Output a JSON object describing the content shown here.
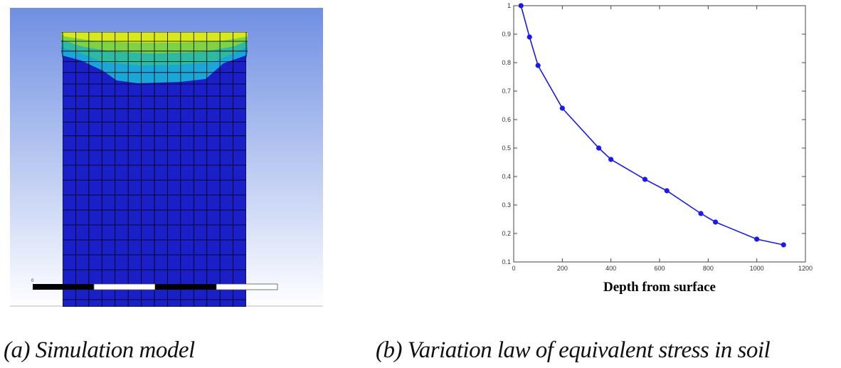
{
  "captions": {
    "a": "(a) Simulation model",
    "b": "(b) Variation law of equivalent stress in soil"
  },
  "simulation": {
    "scale_left_label": "0",
    "scale_right_label": "",
    "colors": {
      "background_top": "#6f8fe2",
      "background_bottom": "#ffffff",
      "soil": "#1a1fc8",
      "grid_line": "#000000",
      "contour_1": "#d8e81a",
      "contour_2": "#7fd244",
      "contour_3": "#2fb9a0",
      "contour_4": "#1aa6d6",
      "scale_bar": "#000000"
    }
  },
  "chart_data": {
    "type": "line",
    "title": "",
    "xlabel": "Depth from surface",
    "ylabel": "",
    "xlim": [
      0,
      1200
    ],
    "ylim": [
      0.1,
      1
    ],
    "x_ticks": [
      0,
      200,
      400,
      600,
      800,
      1000,
      1200
    ],
    "y_ticks": [
      0.1,
      0.2,
      0.3,
      0.4,
      0.5,
      0.6,
      0.7,
      0.8,
      0.9,
      1
    ],
    "x_tick_labels": [
      "0",
      "200",
      "400",
      "600",
      "800",
      "1000",
      "1200"
    ],
    "y_tick_labels": [
      "0.1",
      "0.2",
      "0.3",
      "0.4",
      "0.5",
      "0.6",
      "0.7",
      "0.8",
      "0.9",
      "1"
    ],
    "grid": false,
    "series": [
      {
        "color": "#1a1aee",
        "marker": "circle",
        "x": [
          30,
          65,
          100,
          200,
          350,
          400,
          540,
          630,
          770,
          830,
          1000,
          1110
        ],
        "y": [
          1.0,
          0.89,
          0.79,
          0.64,
          0.5,
          0.46,
          0.39,
          0.35,
          0.27,
          0.24,
          0.18,
          0.16
        ]
      }
    ]
  }
}
